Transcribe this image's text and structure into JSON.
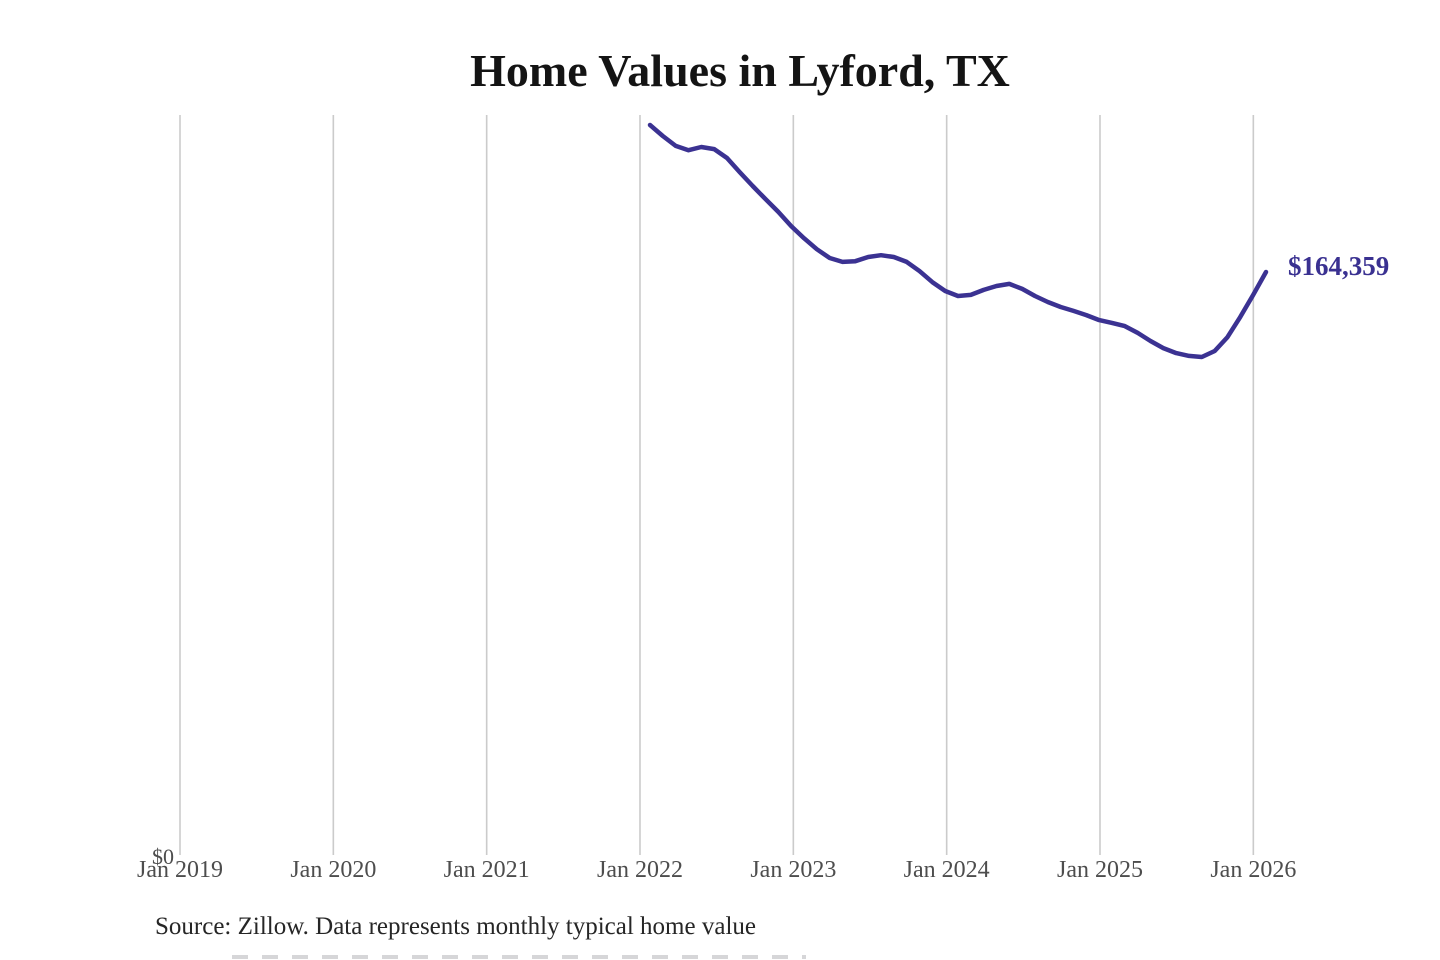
{
  "header": {
    "title": "Home Values in Lyford, TX"
  },
  "chart": {
    "line_color": "#3b3292",
    "gridline_color": "#cbcbcb",
    "tick_label_color": "#4d4d4d",
    "end_label": "$164,359",
    "end_label_color": "#3a3191",
    "y_zero_label": "$0"
  },
  "chart_data": {
    "type": "line",
    "title": "Home Values in Lyford, TX",
    "series_name": "Typical home value (monthly)",
    "x": [
      "2022-02",
      "2022-03",
      "2022-04",
      "2022-05",
      "2022-06",
      "2022-07",
      "2022-08",
      "2022-09",
      "2022-10",
      "2022-11",
      "2022-12",
      "2023-01",
      "2023-02",
      "2023-03",
      "2023-04",
      "2023-05",
      "2023-06",
      "2023-07",
      "2023-08",
      "2023-09",
      "2023-10",
      "2023-11",
      "2023-12",
      "2024-01",
      "2024-02",
      "2024-03",
      "2024-04",
      "2024-05",
      "2024-06",
      "2024-07",
      "2024-08",
      "2024-09",
      "2024-10",
      "2024-11",
      "2024-12",
      "2025-01",
      "2025-02",
      "2025-03",
      "2025-04",
      "2025-05",
      "2025-06",
      "2025-07",
      "2025-08",
      "2025-09",
      "2025-10",
      "2025-11",
      "2025-12",
      "2026-01",
      "2026-02"
    ],
    "values": [
      205800,
      202700,
      199900,
      198700,
      199600,
      199000,
      196500,
      192500,
      188600,
      184900,
      181300,
      177300,
      173900,
      170800,
      168300,
      167200,
      167400,
      168600,
      169100,
      168600,
      167200,
      164600,
      161500,
      159000,
      157600,
      157900,
      159300,
      160400,
      161000,
      159600,
      157600,
      155900,
      154500,
      153400,
      152200,
      150800,
      150000,
      149100,
      147200,
      144900,
      142900,
      141500,
      140700,
      140400,
      142100,
      146000,
      151700,
      157900,
      164359
    ],
    "final_value": 164359,
    "final_value_label": "$164,359",
    "x_tick_labels": [
      "Jan 2019",
      "Jan 2020",
      "Jan 2021",
      "Jan 2022",
      "Jan 2023",
      "Jan 2024",
      "Jan 2025",
      "Jan 2026"
    ],
    "y_axis": {
      "min": 0,
      "min_label": "$0"
    },
    "ylim": [
      0,
      210000
    ],
    "grid": "vertical-gridlines-only",
    "legend": "none"
  },
  "footer": {
    "source": "Source: Zillow. Data represents monthly typical home value"
  }
}
